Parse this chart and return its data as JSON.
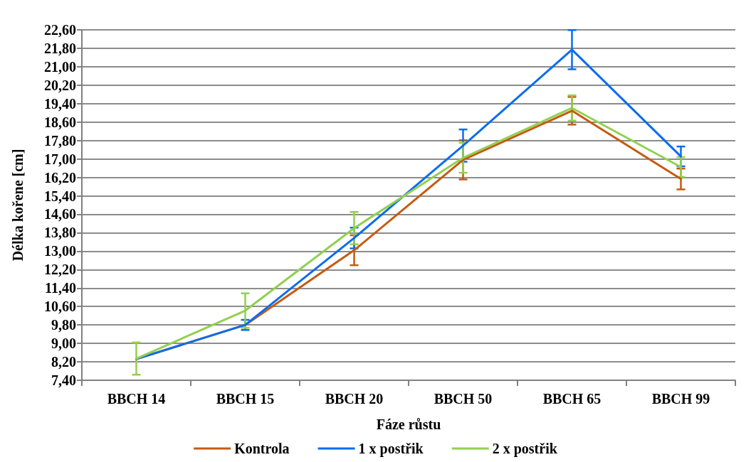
{
  "chart_data": {
    "type": "line",
    "xlabel": "Fáze růstu",
    "ylabel": "Délka kořene [cm]",
    "categories": [
      "BBCH 14",
      "BBCH 15",
      "BBCH 20",
      "BBCH 50",
      "BBCH 65",
      "BBCH 99"
    ],
    "series": [
      {
        "name": "Kontrola",
        "color": "#c55a11",
        "values": [
          8.32,
          9.8,
          13.04,
          16.96,
          19.09,
          16.13
        ],
        "errors": [
          null,
          null,
          0.65,
          0.85,
          0.6,
          0.45
        ]
      },
      {
        "name": "1 x postřik",
        "color": "#0a6cf0",
        "values": [
          8.32,
          9.8,
          13.57,
          17.58,
          21.74,
          17.11
        ],
        "errors": [
          null,
          0.22,
          0.45,
          0.7,
          0.85,
          0.43
        ]
      },
      {
        "name": "2 x postřik",
        "color": "#92d050",
        "values": [
          8.34,
          10.42,
          14.0,
          17.05,
          19.21,
          16.65
        ],
        "errors": [
          0.7,
          0.75,
          0.7,
          0.65,
          0.55,
          0.43
        ]
      }
    ],
    "ylim": [
      7.4,
      22.6
    ],
    "yticks": [
      {
        "value": 7.4,
        "label": "7,40"
      },
      {
        "value": 8.2,
        "label": "8,20"
      },
      {
        "value": 9.0,
        "label": "9,00"
      },
      {
        "value": 9.8,
        "label": "9,80"
      },
      {
        "value": 10.6,
        "label": "10,60"
      },
      {
        "value": 11.4,
        "label": "11,40"
      },
      {
        "value": 12.2,
        "label": "12,20"
      },
      {
        "value": 13.0,
        "label": "13,00"
      },
      {
        "value": 13.8,
        "label": "13,80"
      },
      {
        "value": 14.6,
        "label": "14,60"
      },
      {
        "value": 15.4,
        "label": "15,40"
      },
      {
        "value": 16.2,
        "label": "16,20"
      },
      {
        "value": 17.0,
        "label": "17,00"
      },
      {
        "value": 17.8,
        "label": "17,80"
      },
      {
        "value": 18.6,
        "label": "18,60"
      },
      {
        "value": 19.4,
        "label": "19,40"
      },
      {
        "value": 20.2,
        "label": "20,20"
      },
      {
        "value": 21.0,
        "label": "21,00"
      },
      {
        "value": 21.8,
        "label": "21,80"
      },
      {
        "value": 22.6,
        "label": "22,60"
      }
    ],
    "grid": "y",
    "legend": "bottom",
    "marker": "none",
    "line_style": "solid"
  }
}
